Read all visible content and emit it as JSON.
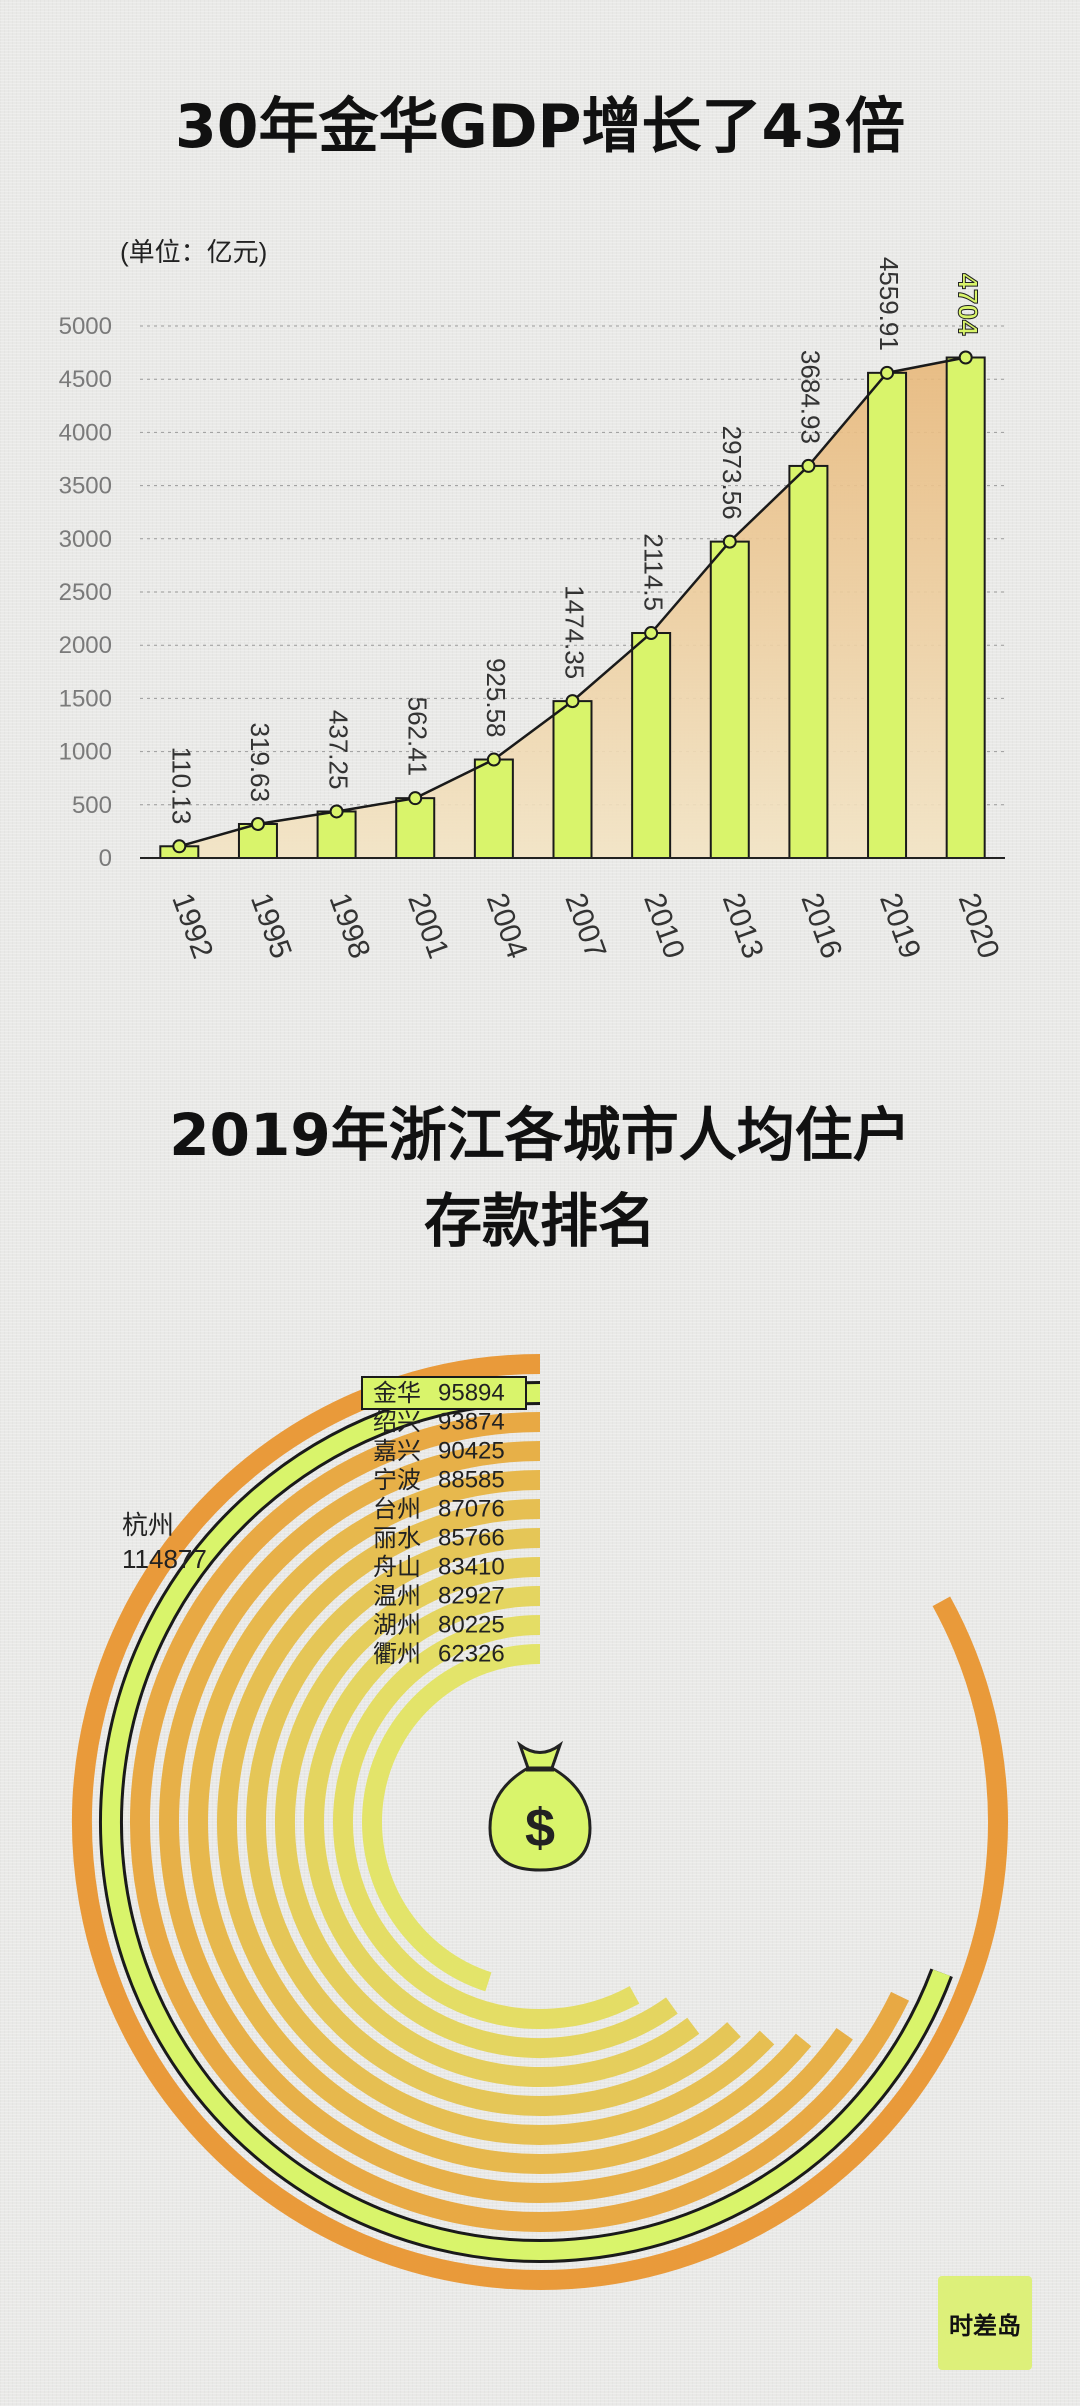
{
  "header": {
    "title": "30年金华GDP增长了43倍",
    "unit": "(单位：亿元)"
  },
  "section2": {
    "title_line1": "2019年浙江各城市人均住户",
    "title_line2": "存款排名"
  },
  "brand": {
    "label": "时差岛"
  },
  "colors": {
    "bar_fill": "#d9f46b",
    "area_fill_top": "#e8b87a",
    "area_fill_bottom": "#f3e4c4",
    "ring_outer": "#e99a3a",
    "ring_inner": "#e3e46a",
    "highlight": "#d9f46b"
  },
  "chart_data": [
    {
      "type": "bar",
      "title": "30年金华GDP增长了43倍",
      "ylabel": "(单位：亿元)",
      "ylim": [
        0,
        5000
      ],
      "yticks": [
        0,
        500,
        1000,
        1500,
        2000,
        2500,
        3000,
        3500,
        4000,
        4500,
        5000
      ],
      "categories": [
        "1992",
        "1995",
        "1998",
        "2001",
        "2004",
        "2007",
        "2010",
        "2013",
        "2016",
        "2019",
        "2020"
      ],
      "values": [
        110.13,
        319.63,
        437.25,
        562.41,
        925.58,
        1474.35,
        2114.5,
        2973.56,
        3684.93,
        4559.91,
        4704
      ],
      "value_labels": [
        "110.13",
        "319.63",
        "437.25",
        "562.41",
        "925.58",
        "1474.35",
        "2114.5",
        "2973.56",
        "3684.93",
        "4559.91",
        "4704"
      ],
      "grid": true,
      "overlay": "line"
    },
    {
      "type": "radial_bar",
      "title": "2019年浙江各城市人均住户存款排名",
      "categories": [
        "杭州",
        "金华",
        "绍兴",
        "嘉兴",
        "宁波",
        "台州",
        "丽水",
        "舟山",
        "温州",
        "湖州",
        "衢州"
      ],
      "values": [
        114877,
        95894,
        93874,
        90425,
        88585,
        87076,
        85766,
        83410,
        82927,
        80225,
        62326
      ],
      "highlight": "金华"
    }
  ]
}
